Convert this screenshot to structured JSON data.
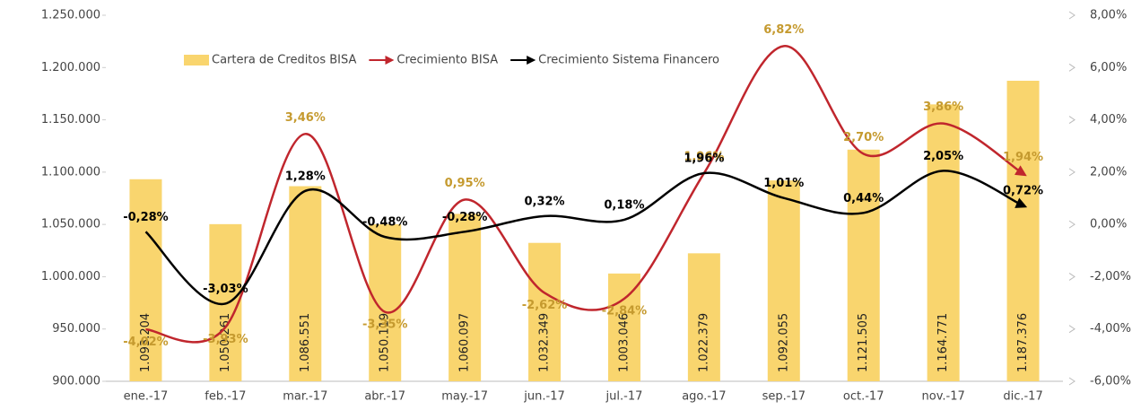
{
  "chart_data": {
    "type": "bar-line",
    "categories": [
      "ene.-17",
      "feb.-17",
      "mar.-17",
      "abr.-17",
      "may.-17",
      "jun.-17",
      "jul.-17",
      "ago.-17",
      "sep.-17",
      "oct.-17",
      "nov.-17",
      "dic.-17"
    ],
    "series": [
      {
        "name": "Cartera de Creditos BISA",
        "type": "bar",
        "axis": "y",
        "color": "#f9d56e",
        "values": [
          1093204,
          1050261,
          1086551,
          1050119,
          1060097,
          1032349,
          1003046,
          1022379,
          1092055,
          1121505,
          1164771,
          1187376
        ],
        "value_labels": [
          "1.093.204",
          "1.050.261",
          "1.086.551",
          "1.050.119",
          "1.060.097",
          "1.032.349",
          "1.003.046",
          "1.022.379",
          "1.092.055",
          "1.121.505",
          "1.164.771",
          "1.187.376"
        ]
      },
      {
        "name": "Crecimiento BISA",
        "type": "line",
        "axis": "y2",
        "color": "#c0262d",
        "label_color": "#c59a2f",
        "values": [
          -4.02,
          -3.93,
          3.46,
          -3.35,
          0.95,
          -2.62,
          -2.84,
          1.96,
          6.82,
          2.7,
          3.86,
          1.94
        ],
        "value_labels": [
          "-4,02%",
          "-3,93%",
          "3,46%",
          "-3,35%",
          "0,95%",
          "-2,62%",
          "-2,84%",
          "1,96%",
          "6,82%",
          "2,70%",
          "3,86%",
          "1,94%"
        ]
      },
      {
        "name": "Crecimiento Sistema Financero",
        "type": "line",
        "axis": "y2",
        "color": "#000000",
        "label_color": "#000000",
        "values": [
          -0.28,
          -3.03,
          1.28,
          -0.48,
          -0.28,
          0.32,
          0.18,
          1.96,
          1.01,
          0.44,
          2.05,
          0.72
        ],
        "value_labels": [
          "-0,28%",
          "-3,03%",
          "1,28%",
          "-0,48%",
          "-0,28%",
          "0,32%",
          "0,18%",
          "1,96%",
          "1,01%",
          "0,44%",
          "2,05%",
          "0,72%"
        ]
      }
    ],
    "ylim": [
      900000,
      1250000
    ],
    "yticks": [
      {
        "value": 900000,
        "label": "900.000"
      },
      {
        "value": 950000,
        "label": "950.000"
      },
      {
        "value": 1000000,
        "label": "1.000.000"
      },
      {
        "value": 1050000,
        "label": "1.050.000"
      },
      {
        "value": 1100000,
        "label": "1.100.000"
      },
      {
        "value": 1150000,
        "label": "1.150.000"
      },
      {
        "value": 1200000,
        "label": "1.200.000"
      },
      {
        "value": 1250000,
        "label": "1.250.000"
      }
    ],
    "y2lim": [
      -6,
      8
    ],
    "y2ticks": [
      {
        "value": -6,
        "label": "-6,00%"
      },
      {
        "value": -4,
        "label": "-4,00%"
      },
      {
        "value": -2,
        "label": "-2,00%"
      },
      {
        "value": 0,
        "label": "0,00%"
      },
      {
        "value": 2,
        "label": "2,00%"
      },
      {
        "value": 4,
        "label": "4,00%"
      },
      {
        "value": 6,
        "label": "6,00%"
      },
      {
        "value": 8,
        "label": "8,00%"
      }
    ],
    "legend": "top"
  }
}
